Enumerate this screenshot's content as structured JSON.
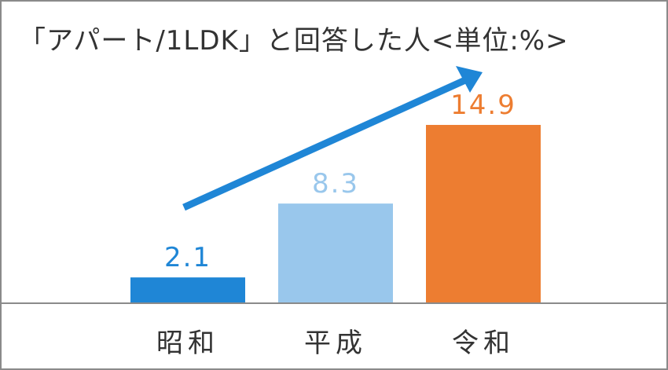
{
  "chart_data": {
    "type": "bar",
    "title": "「アパート/1LDK」と回答した人<単位:%>",
    "categories": [
      "昭和",
      "平成",
      "令和"
    ],
    "values": [
      2.1,
      8.3,
      14.9
    ],
    "value_labels": [
      "2.1",
      "8.3",
      "14.9"
    ],
    "colors": [
      "#1f86d6",
      "#99c7ec",
      "#ed7d31"
    ],
    "trend_arrow_color": "#1f86d6",
    "ylim": [
      0,
      18
    ],
    "grid": false,
    "legend": "none"
  }
}
